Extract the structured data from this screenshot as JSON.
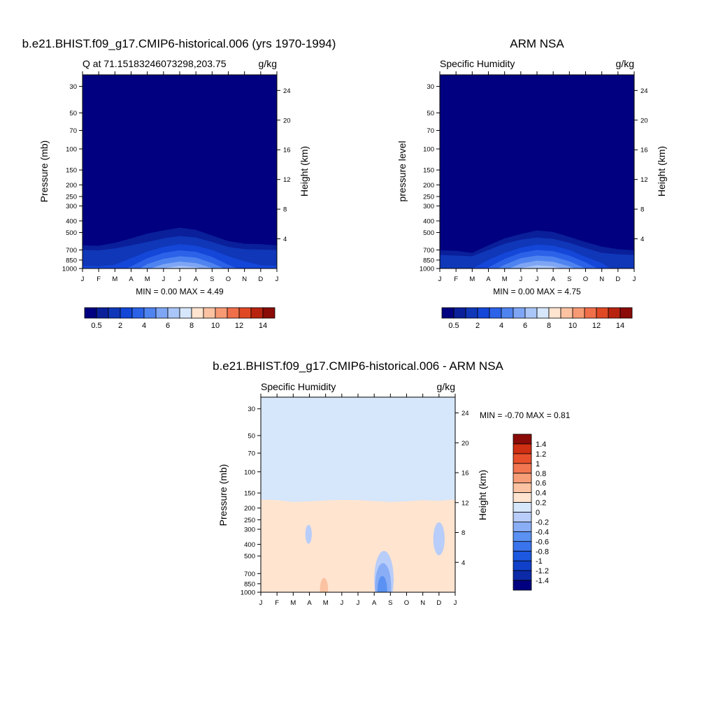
{
  "colors": {
    "seq_cmap": [
      "#000080",
      "#0a1f9a",
      "#0f37b8",
      "#1446d8",
      "#2c62e8",
      "#4f84f0",
      "#7ea6f4",
      "#aac6f8",
      "#d6e6fb",
      "#ffe4d0",
      "#fcc2a2",
      "#f79a74",
      "#f06f4a",
      "#e04824",
      "#b8230f",
      "#8a0b07"
    ],
    "diff_cmap": [
      "#000080",
      "#0c2aa8",
      "#1040c9",
      "#1c58e0",
      "#3a74ec",
      "#5a91f2",
      "#8aaef6",
      "#b8cdf9",
      "#d6e6fb",
      "#ffe4d0",
      "#fbc3a2",
      "#f79e78",
      "#f27650",
      "#e8502c",
      "#cf2f12",
      "#8a0b07"
    ]
  },
  "figure": {
    "panel1": {
      "title": "b.e21.BHIST.f09_g17.CMIP6-historical.006 (yrs 1970-1994)",
      "left_label": "Q at 71.15183246073298,203.75",
      "units": "g/kg",
      "ylabel": "Pressure (mb)",
      "right_ylabel": "Height (km)",
      "stats": "MIN =   0.00 MAX =   4.49"
    },
    "panel2": {
      "title": "ARM NSA",
      "left_label": "Specific Humidity",
      "units": "g/kg",
      "ylabel": "pressure level",
      "right_ylabel": "Height (km)",
      "stats": "MIN =   0.00 MAX =   4.75"
    },
    "panel3": {
      "title": "b.e21.BHIST.f09_g17.CMIP6-historical.006 - ARM NSA",
      "left_label": "Specific Humidity",
      "units": "g/kg",
      "ylabel": "Pressure (mb)",
      "right_ylabel": "Height (km)",
      "stats": "MIN =  -0.70 MAX =    0.81"
    }
  },
  "chart_data": [
    {
      "type": "heatmap",
      "title": "b.e21.BHIST.f09_g17.CMIP6-historical.006 (yrs 1970-1994)",
      "xlabel": "",
      "ylabel": "Pressure (mb)",
      "y2label": "Height (km)",
      "x_ticks": [
        "J",
        "F",
        "M",
        "A",
        "M",
        "J",
        "J",
        "A",
        "S",
        "O",
        "N",
        "D",
        "J"
      ],
      "y_ticks": [
        30,
        50,
        70,
        100,
        150,
        200,
        250,
        300,
        400,
        500,
        700,
        850,
        1000
      ],
      "y2_ticks": [
        4,
        8,
        12,
        16,
        20,
        24
      ],
      "y_scale": "log",
      "ylim": [
        1000,
        24
      ],
      "levels": [
        0.5,
        1,
        2,
        3,
        4,
        5,
        6,
        7,
        8,
        9,
        10,
        11,
        12,
        13,
        14
      ],
      "colorbar_labels": [
        "0.5",
        "2",
        "4",
        "6",
        "8",
        "10",
        "12",
        "14"
      ],
      "min": 0.0,
      "max": 4.49,
      "top_boundaries_mb": [
        [
          640,
          645,
          610,
          560,
          510,
          480,
          455,
          475,
          530,
          590,
          620,
          625,
          640
        ],
        [
          700,
          705,
          680,
          640,
          600,
          560,
          535,
          550,
          600,
          660,
          690,
          695,
          700
        ],
        [
          950,
          960,
          930,
          820,
          720,
          660,
          625,
          645,
          700,
          790,
          870,
          940,
          950
        ],
        [
          1100,
          1100,
          1100,
          960,
          820,
          740,
          705,
          725,
          800,
          930,
          1060,
          1100,
          1100
        ],
        [
          1100,
          1100,
          1100,
          1100,
          920,
          830,
          790,
          810,
          900,
          1040,
          1100,
          1100,
          1100
        ],
        [
          1100,
          1100,
          1100,
          1100,
          1020,
          920,
          875,
          900,
          990,
          1100,
          1100,
          1100,
          1100
        ],
        [
          1100,
          1100,
          1100,
          1100,
          1100,
          995,
          950,
          975,
          1060,
          1100,
          1100,
          1100,
          1100
        ]
      ]
    },
    {
      "type": "heatmap",
      "title": "ARM NSA",
      "xlabel": "",
      "ylabel": "pressure level",
      "y2label": "Height (km)",
      "x_ticks": [
        "J",
        "F",
        "M",
        "A",
        "M",
        "J",
        "J",
        "A",
        "S",
        "O",
        "N",
        "D",
        "J"
      ],
      "y_ticks": [
        30,
        50,
        70,
        100,
        150,
        200,
        250,
        300,
        400,
        500,
        700,
        850,
        1000
      ],
      "y2_ticks": [
        4,
        8,
        12,
        16,
        20,
        24
      ],
      "y_scale": "log",
      "ylim": [
        1000,
        24
      ],
      "levels": [
        0.5,
        1,
        2,
        3,
        4,
        5,
        6,
        7,
        8,
        9,
        10,
        11,
        12,
        13,
        14
      ],
      "colorbar_labels": [
        "0.5",
        "2",
        "4",
        "6",
        "8",
        "10",
        "12",
        "14"
      ],
      "min": 0.0,
      "max": 4.75,
      "top_boundaries_mb": [
        [
          705,
          710,
          740,
          640,
          560,
          515,
          480,
          495,
          545,
          600,
          655,
          690,
          705
        ],
        [
          770,
          780,
          790,
          700,
          620,
          575,
          550,
          565,
          610,
          675,
          740,
          760,
          770
        ],
        [
          1100,
          1100,
          1000,
          850,
          740,
          670,
          630,
          645,
          700,
          800,
          900,
          1100,
          1100
        ],
        [
          1100,
          1100,
          1100,
          980,
          830,
          740,
          700,
          715,
          780,
          890,
          1040,
          1100,
          1100
        ],
        [
          1100,
          1100,
          1100,
          1100,
          930,
          820,
          780,
          795,
          870,
          1000,
          1100,
          1100,
          1100
        ],
        [
          1100,
          1100,
          1100,
          1100,
          1040,
          910,
          860,
          880,
          960,
          1100,
          1100,
          1100,
          1100
        ],
        [
          1100,
          1100,
          1100,
          1100,
          1100,
          990,
          940,
          960,
          1040,
          1100,
          1100,
          1100,
          1100
        ]
      ]
    },
    {
      "type": "heatmap",
      "title": "b.e21.BHIST.f09_g17.CMIP6-historical.006 - ARM NSA",
      "xlabel": "",
      "ylabel": "Pressure (mb)",
      "y2label": "Height (km)",
      "x_ticks": [
        "J",
        "F",
        "M",
        "A",
        "M",
        "J",
        "J",
        "A",
        "S",
        "O",
        "N",
        "D",
        "J"
      ],
      "y_ticks": [
        30,
        50,
        70,
        100,
        150,
        200,
        250,
        300,
        400,
        500,
        700,
        850,
        1000
      ],
      "y2_ticks": [
        4,
        8,
        12,
        16,
        20,
        24
      ],
      "y_scale": "log",
      "ylim": [
        1000,
        24
      ],
      "levels": [
        -1.4,
        -1.2,
        -1,
        -0.8,
        -0.6,
        -0.4,
        -0.2,
        0,
        0.2,
        0.4,
        0.6,
        0.8,
        1,
        1.2,
        1.4
      ],
      "colorbar_labels": [
        "1.4",
        "1.2",
        "1",
        "0.8",
        "0.6",
        "0.4",
        "0.2",
        "0",
        "-0.2",
        "-0.4",
        "-0.6",
        "-0.8",
        "-1",
        "-1.2",
        "-1.4"
      ],
      "min": -0.7,
      "max": 0.81,
      "zero_line_mb": [
        170,
        172,
        178,
        176,
        173,
        171,
        172,
        175,
        178,
        176,
        172,
        174,
        170
      ],
      "features": [
        {
          "kind": "negative",
          "value": -0.1,
          "center_month": 2.95,
          "center_mb": 330,
          "spread": 0.2
        },
        {
          "kind": "negative",
          "value": -0.1,
          "center_month": 11.0,
          "center_mb": 360,
          "spread": 0.35
        },
        {
          "kind": "negative",
          "value": -0.1,
          "center_month": 7.6,
          "center_mb": 780,
          "spread": 0.6
        },
        {
          "kind": "negative",
          "value": -0.3,
          "center_month": 7.55,
          "center_mb": 900,
          "spread": 0.5
        },
        {
          "kind": "negative",
          "value": -0.5,
          "center_month": 7.5,
          "center_mb": 960,
          "spread": 0.3
        },
        {
          "kind": "positive",
          "value": 0.3,
          "center_month": 6.2,
          "center_mb": 620,
          "spread": 0.5
        },
        {
          "kind": "positive",
          "value": 0.3,
          "center_month": 3.8,
          "center_mb": 880,
          "spread": 0.5
        },
        {
          "kind": "positive",
          "value": 0.3,
          "center_month": 1.5,
          "center_mb": 920,
          "spread": 0.6
        },
        {
          "kind": "positive",
          "value": 0.5,
          "center_month": 3.9,
          "center_mb": 950,
          "spread": 0.25
        },
        {
          "kind": "positive",
          "value": 0.3,
          "center_month": 11.4,
          "center_mb": 900,
          "spread": 0.4
        }
      ]
    }
  ]
}
